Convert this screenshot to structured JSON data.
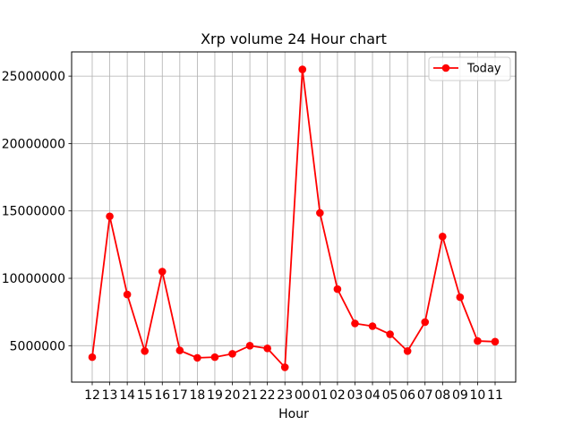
{
  "chart_data": {
    "type": "line",
    "title": "Xrp volume 24 Hour chart",
    "xlabel": "Hour",
    "ylabel": "",
    "categories": [
      "12",
      "13",
      "14",
      "15",
      "16",
      "17",
      "18",
      "19",
      "20",
      "21",
      "22",
      "23",
      "00",
      "01",
      "02",
      "03",
      "04",
      "05",
      "06",
      "07",
      "08",
      "09",
      "10",
      "11"
    ],
    "series": [
      {
        "name": "Today",
        "color": "#ff0000",
        "marker": "circle",
        "values": [
          4150000,
          14600000,
          8800000,
          4600000,
          10500000,
          4650000,
          4100000,
          4150000,
          4400000,
          5000000,
          4800000,
          3400000,
          25500000,
          14850000,
          9200000,
          6650000,
          6450000,
          5850000,
          4600000,
          6750000,
          13100000,
          8600000,
          5350000,
          5300000
        ]
      }
    ],
    "ylim": [
      2300000,
      26800000
    ],
    "yticks": [
      5000000,
      10000000,
      15000000,
      20000000,
      25000000
    ],
    "ytick_labels": [
      "5000000",
      "10000000",
      "15000000",
      "20000000",
      "25000000"
    ],
    "grid": true,
    "legend_position": "top-right"
  }
}
